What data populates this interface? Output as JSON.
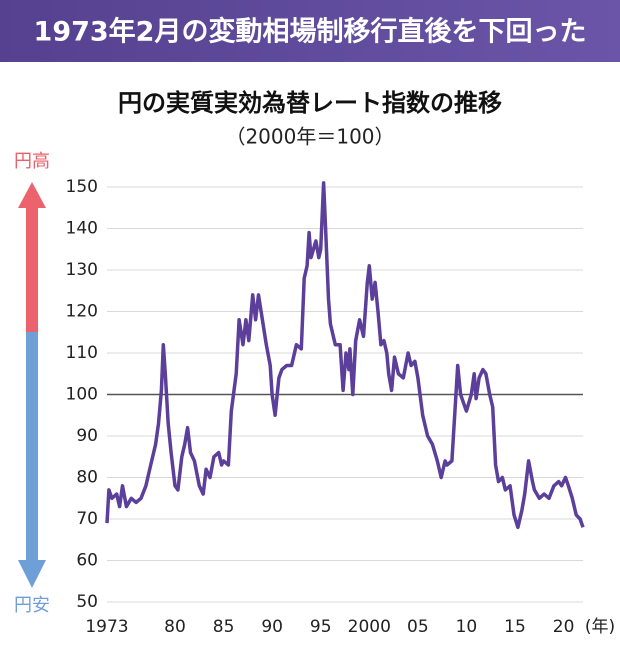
{
  "chart_data": {
    "type": "line",
    "header": "1973年2月の変動相場制移行直後を下回った",
    "title": "円の実質実効為替レート指数の推移",
    "subtitle": "（2000年＝100）",
    "x_unit": "(年)",
    "strong_label": "円高",
    "weak_label": "円安",
    "x": [
      1973.0,
      1973.2,
      1973.5,
      1974,
      1974.3,
      1974.6,
      1975,
      1975.5,
      1976,
      1976.5,
      1977,
      1977.5,
      1978,
      1978.3,
      1978.6,
      1978.8,
      1979,
      1979.3,
      1979.6,
      1980,
      1980.3,
      1980.7,
      1981,
      1981.3,
      1981.6,
      1982,
      1982.5,
      1982.9,
      1983.2,
      1983.6,
      1984,
      1984.5,
      1984.8,
      1985,
      1985.5,
      1985.8,
      1986.3,
      1986.6,
      1987,
      1987.3,
      1987.6,
      1988,
      1988.3,
      1988.6,
      1989,
      1989.4,
      1989.8,
      1990,
      1990.3,
      1990.7,
      1991,
      1991.5,
      1992,
      1992.5,
      1993,
      1993.3,
      1993.6,
      1993.8,
      1994,
      1994.5,
      1994.8,
      1995,
      1995.3,
      1995.5,
      1995.8,
      1996,
      1996.5,
      1997,
      1997.3,
      1997.6,
      1997.9,
      1998,
      1998.3,
      1998.6,
      1999,
      1999.4,
      1999.8,
      2000,
      2000.3,
      2000.6,
      2000.9,
      2001.2,
      2001.5,
      2001.8,
      2002,
      2002.3,
      2002.6,
      2003,
      2003.5,
      2004,
      2004.3,
      2004.7,
      2005,
      2005.5,
      2006,
      2006.5,
      2007,
      2007.4,
      2007.8,
      2008,
      2008.5,
      2008.9,
      2009.1,
      2009.4,
      2009.7,
      2010,
      2010.5,
      2010.8,
      2011,
      2011.3,
      2011.7,
      2012,
      2012.4,
      2012.7,
      2013,
      2013.3,
      2013.7,
      2014,
      2014.5,
      2014.9,
      2015.3,
      2015.7,
      2016,
      2016.4,
      2016.8,
      2017,
      2017.5,
      2018,
      2018.5,
      2019,
      2019.5,
      2019.8,
      2020.2,
      2020.5,
      2020.9,
      2021.3,
      2021.7,
      2022
    ],
    "series": [
      {
        "name": "実質実効為替レート",
        "color": "#5b3f9a",
        "values": [
          69,
          77,
          75,
          76,
          73,
          78,
          73,
          75,
          74,
          75,
          78,
          83,
          88,
          93,
          101,
          112,
          105,
          93,
          86,
          78,
          77,
          85,
          88,
          92,
          86,
          84,
          78,
          76,
          82,
          80,
          85,
          86,
          83,
          84,
          83,
          96,
          105,
          118,
          112,
          118,
          113,
          124,
          118,
          124,
          118,
          112,
          107,
          100,
          95,
          104,
          106,
          107,
          107,
          112,
          111,
          128,
          131,
          139,
          133,
          137,
          133,
          135,
          151,
          140,
          123,
          117,
          112,
          112,
          101,
          110,
          106,
          111,
          100,
          113,
          118,
          114,
          127,
          131,
          123,
          127,
          120,
          112,
          113,
          110,
          105,
          101,
          109,
          105,
          104,
          110,
          107,
          108,
          104,
          95,
          90,
          88,
          84,
          80,
          84,
          83,
          84,
          99,
          107,
          100,
          98,
          96,
          100,
          105,
          99,
          104,
          106,
          105,
          100,
          97,
          83,
          79,
          80,
          77,
          78,
          71,
          68,
          72,
          76,
          84,
          79,
          77,
          75,
          76,
          75,
          78,
          79,
          78,
          80,
          78,
          75,
          71,
          70,
          68
        ]
      }
    ],
    "xlim": [
      1973,
      2022
    ],
    "xticks": [
      1973,
      {
        "value": 1980,
        "label": "80"
      },
      {
        "value": 1985,
        "label": "85"
      },
      {
        "value": 1990,
        "label": "90"
      },
      {
        "value": 1995,
        "label": "95"
      },
      2000,
      {
        "value": 2005,
        "label": "05"
      },
      {
        "value": 2010,
        "label": "10"
      },
      {
        "value": 2015,
        "label": "15"
      },
      {
        "value": 2020,
        "label": "20"
      }
    ],
    "ylim": [
      50,
      150
    ],
    "yticks": [
      50,
      60,
      70,
      80,
      90,
      100,
      110,
      120,
      130,
      140,
      150
    ],
    "reference_line": 100,
    "grid": true
  }
}
